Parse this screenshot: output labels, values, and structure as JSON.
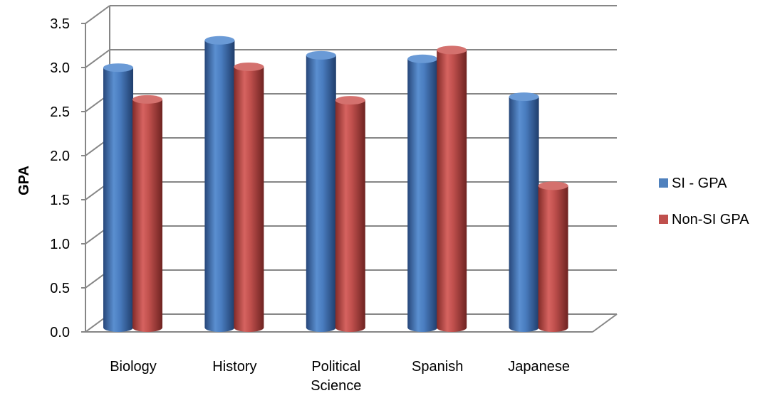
{
  "chart_data": {
    "type": "bar",
    "style": "3d-cylinder",
    "title": "",
    "xlabel": "",
    "ylabel": "GPA",
    "ylim": [
      0,
      3.5
    ],
    "y_ticks": [
      "0.0",
      "0.5",
      "1.0",
      "1.5",
      "2.0",
      "2.5",
      "3.0",
      "3.5"
    ],
    "grid": true,
    "legend_position": "right",
    "categories": [
      [
        "Biology"
      ],
      [
        "History"
      ],
      [
        "Political",
        "Science"
      ],
      [
        "Spanish"
      ],
      [
        "Japanese"
      ]
    ],
    "series": [
      {
        "name": "SI - GPA",
        "color": "#4F81BD",
        "values": [
          2.95,
          3.26,
          3.09,
          3.05,
          2.62
        ]
      },
      {
        "name": "Non-SI GPA",
        "color": "#C0504D",
        "values": [
          2.59,
          2.96,
          2.58,
          3.15,
          1.61
        ]
      }
    ]
  }
}
